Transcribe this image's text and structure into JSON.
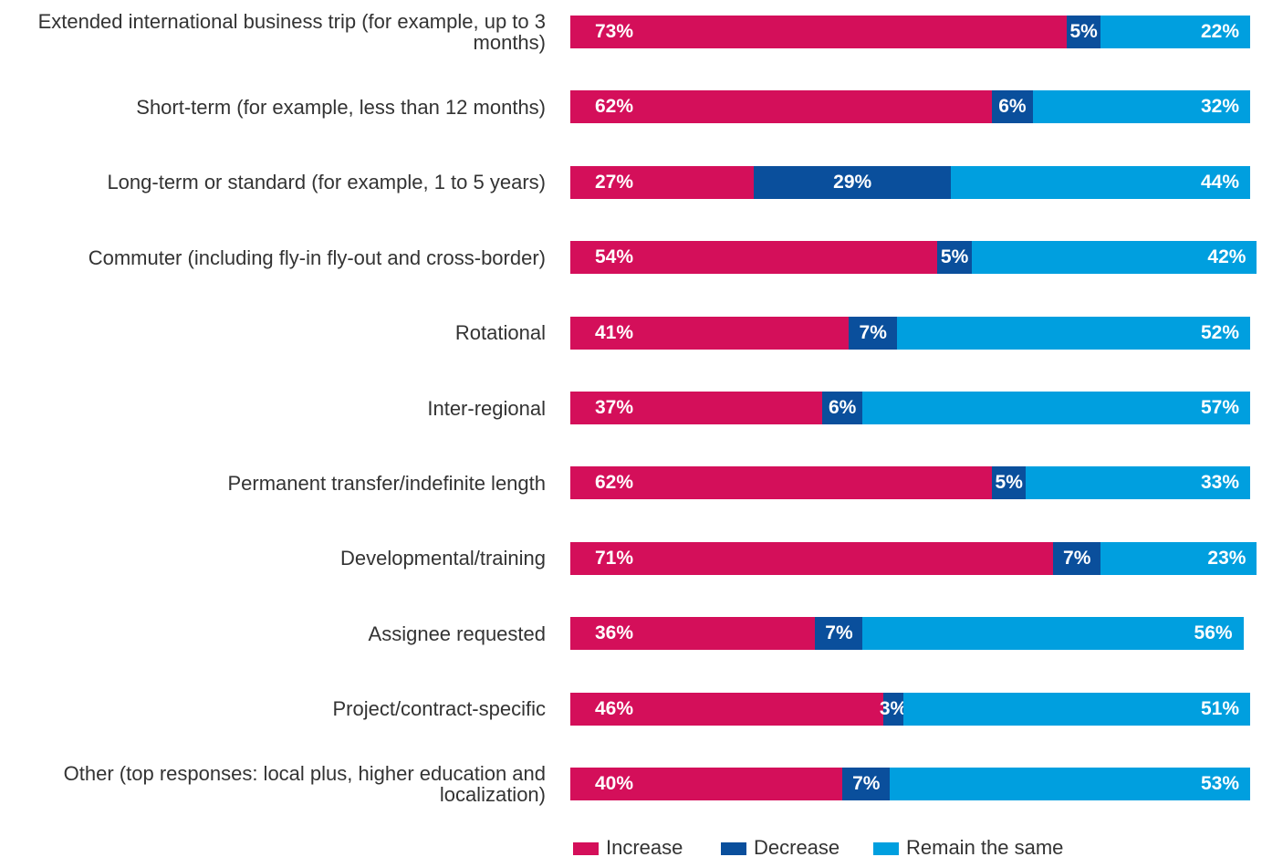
{
  "chart_data": {
    "type": "stacked-bar-horizontal",
    "categories": [
      "Extended international business trip (for example, up to 3 months)",
      "Short-term (for example, less than 12 months)",
      "Long-term or standard (for example, 1 to 5 years)",
      "Commuter (including fly-in fly-out and cross-border)",
      "Rotational",
      "Inter-regional",
      "Permanent transfer/indefinite length",
      "Developmental/training",
      "Assignee requested",
      "Project/contract-specific",
      "Other (top responses: local plus, higher education and localization)"
    ],
    "series": [
      {
        "name": "Increase",
        "color": "#d40f5a",
        "values": [
          73,
          62,
          27,
          54,
          41,
          37,
          62,
          71,
          36,
          46,
          40
        ],
        "value_labels": [
          "73%",
          "62%",
          "27%",
          "54%",
          "41%",
          "37%",
          "62%",
          "71%",
          "36%",
          "46%",
          "40%"
        ]
      },
      {
        "name": "Decrease",
        "color": "#0a4f9c",
        "values": [
          5,
          6,
          29,
          5,
          7,
          6,
          5,
          7,
          7,
          3,
          7
        ],
        "value_labels": [
          "5%",
          "6%",
          "29%",
          "5%",
          "7%",
          "6%",
          "5%",
          "7%",
          "7%",
          "3%",
          "7%"
        ]
      },
      {
        "name": "Remain the same",
        "color": "#009fdf",
        "values": [
          22,
          32,
          44,
          42,
          52,
          57,
          33,
          23,
          56,
          51,
          53
        ],
        "value_labels": [
          "22%",
          "32%",
          "44%",
          "42%",
          "52%",
          "57%",
          "33%",
          "23%",
          "56%",
          "51%",
          "53%"
        ]
      }
    ],
    "legend": "bottom"
  }
}
